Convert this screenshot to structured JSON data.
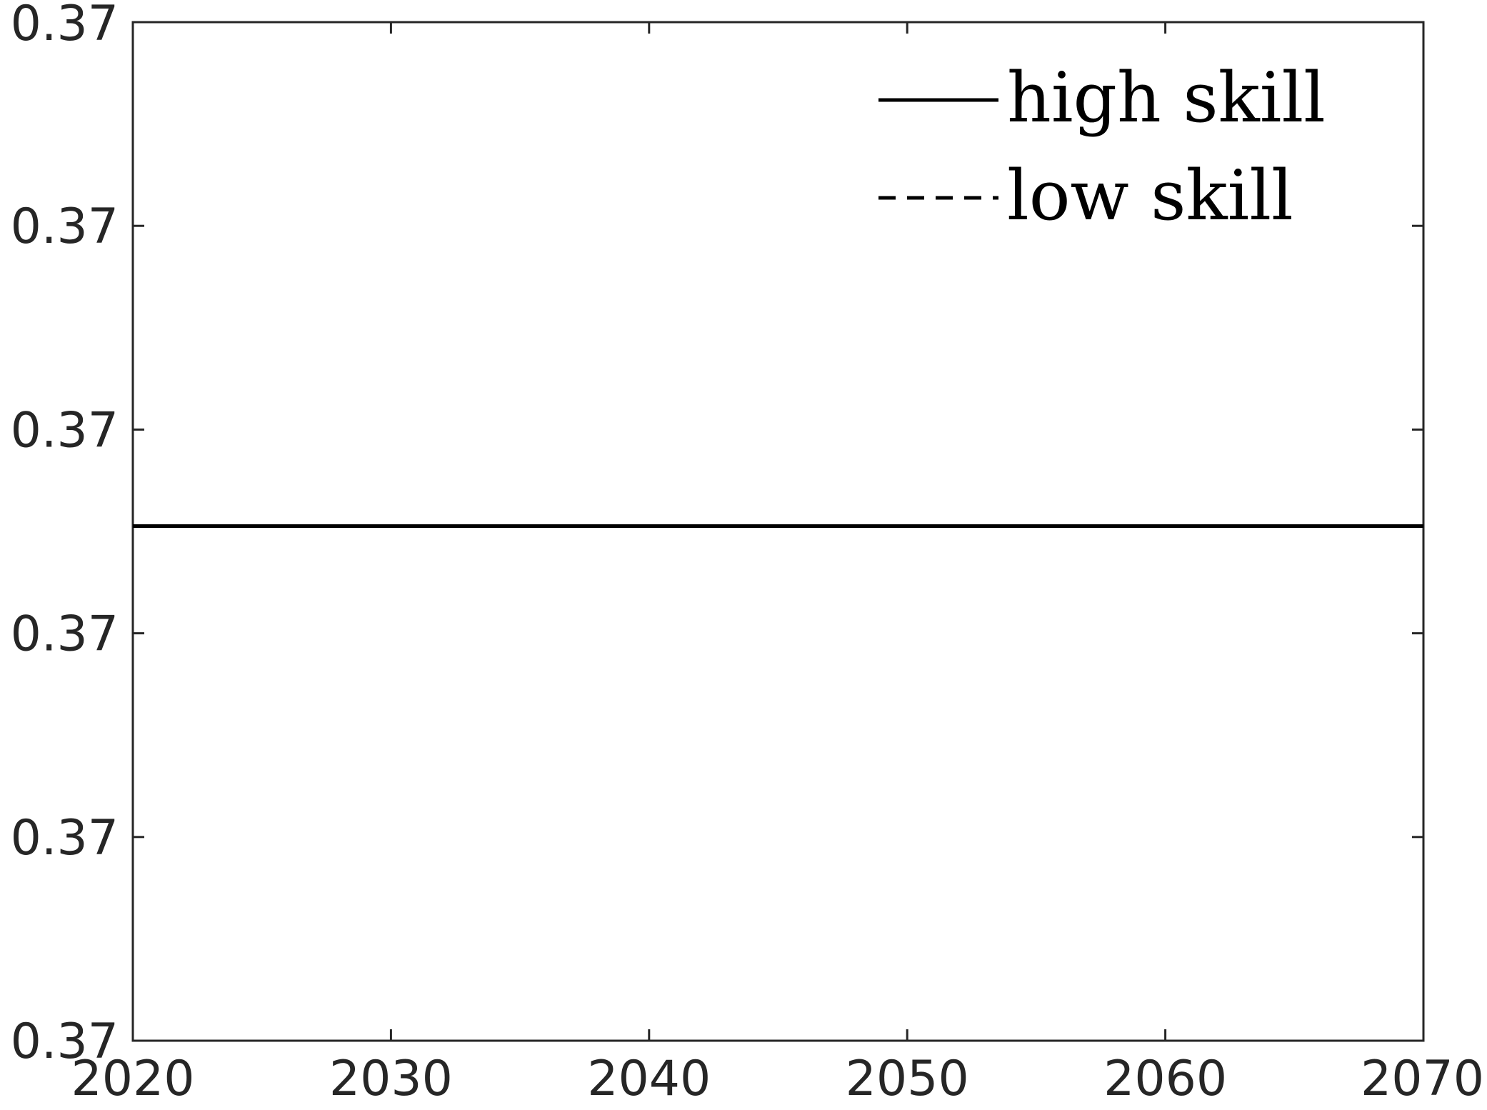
{
  "chart_data": {
    "type": "line",
    "title": "",
    "xlabel": "",
    "ylabel": "",
    "xlim": [
      2020,
      2070
    ],
    "x_ticks": [
      "2020",
      "2030",
      "2040",
      "2050",
      "2060",
      "2070"
    ],
    "y_ticks": [
      "0.37",
      "0.37",
      "0.37",
      "0.37",
      "0.37",
      "0.37"
    ],
    "grid": false,
    "legend_position": "top-right",
    "series": [
      {
        "name": "high skill",
        "style": "solid",
        "color": "#000000",
        "x": [
          2020,
          2025,
          2030,
          2035,
          2040,
          2045,
          2050,
          2055,
          2060,
          2065,
          2070
        ],
        "values": [
          0.37,
          0.37,
          0.37,
          0.37,
          0.37,
          0.37,
          0.37,
          0.37,
          0.37,
          0.37,
          0.37
        ]
      },
      {
        "name": "low skill",
        "style": "dashed",
        "color": "#000000",
        "x": [
          2020,
          2025,
          2030,
          2035,
          2040,
          2045,
          2050,
          2055,
          2060,
          2065,
          2070
        ],
        "values": [
          0.37,
          0.37,
          0.37,
          0.37,
          0.37,
          0.37,
          0.37,
          0.37,
          0.37,
          0.37,
          0.37
        ]
      }
    ]
  }
}
